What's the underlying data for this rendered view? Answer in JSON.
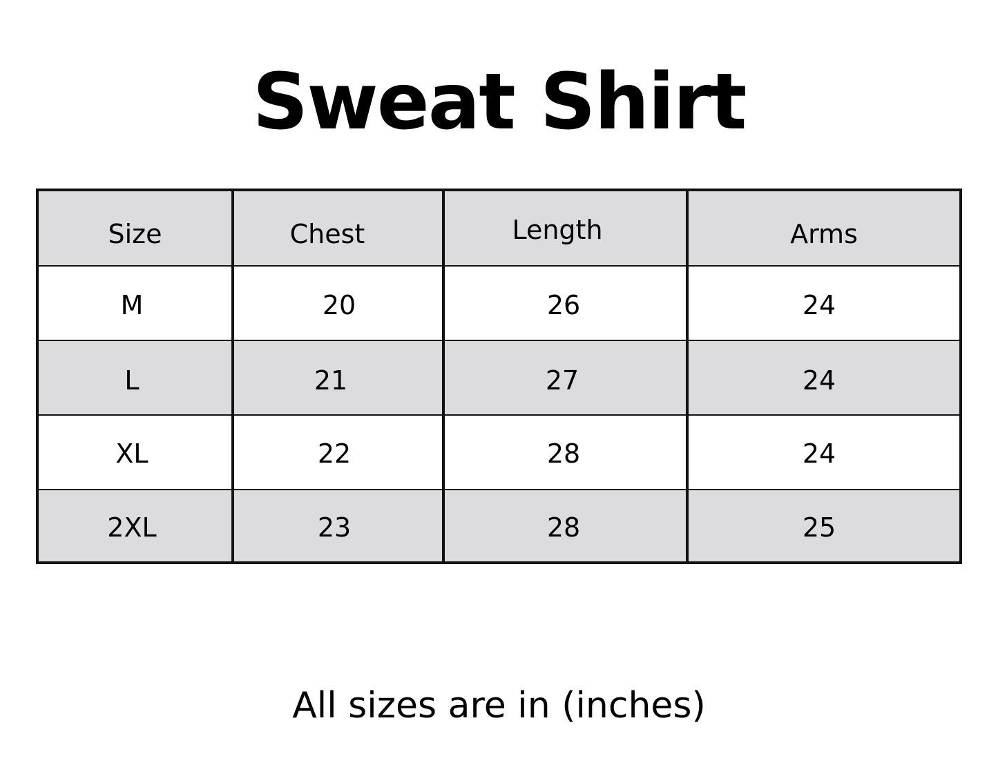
{
  "title": "Sweat Shirt",
  "table": {
    "headers": [
      "Size",
      "Chest",
      "Length",
      "Arms"
    ],
    "rows": [
      [
        "M",
        "20",
        "26",
        "24"
      ],
      [
        "L",
        "21",
        "27",
        "24"
      ],
      [
        "XL",
        "22",
        "28",
        "24"
      ],
      [
        "2XL",
        "23",
        "28",
        "25"
      ]
    ]
  },
  "footer": "All sizes are in (inches)",
  "colors": {
    "header_and_alt_row": "#dcdcde",
    "border": "#111111"
  }
}
